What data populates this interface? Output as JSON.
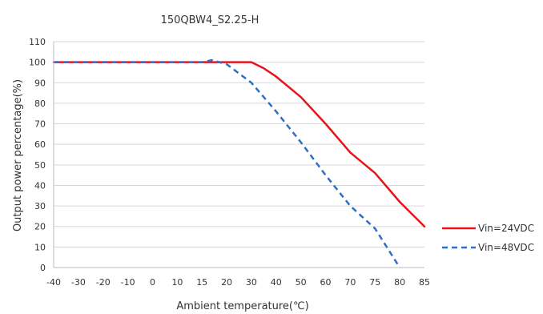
{
  "chart_data": {
    "type": "line",
    "title": "150QBW4_S2.25-H",
    "xlabel": "Ambient temperature(℃)",
    "ylabel": "Output power percentage(%)",
    "x_ticks": [
      -40,
      -30,
      -20,
      -10,
      0,
      10,
      15,
      20,
      30,
      40,
      50,
      60,
      70,
      75,
      80,
      85
    ],
    "y_ticks": [
      0,
      10,
      20,
      30,
      40,
      50,
      60,
      70,
      80,
      90,
      100,
      110
    ],
    "ylim": [
      0,
      110
    ],
    "grid": "horizontal",
    "legend_position": "right",
    "series": [
      {
        "name": "Vin=24VDC",
        "color": "#e8141c",
        "style": "solid",
        "x": [
          -40,
          -30,
          -20,
          -10,
          0,
          10,
          15,
          20,
          25,
          30,
          35,
          40,
          50,
          60,
          70,
          75,
          80,
          85
        ],
        "y": [
          100,
          100,
          100,
          100,
          100,
          100,
          100,
          100,
          100,
          100,
          97,
          93,
          83,
          70,
          56,
          46,
          32,
          20
        ]
      },
      {
        "name": "Vin=48VDC",
        "color": "#2e6fc4",
        "style": "dashed",
        "x": [
          -40,
          -30,
          -20,
          -10,
          0,
          10,
          15,
          17,
          20,
          30,
          40,
          50,
          60,
          70,
          75,
          80
        ],
        "y": [
          100,
          100,
          100,
          100,
          100,
          100,
          100,
          101,
          99,
          90,
          76,
          61,
          45,
          30,
          19,
          0
        ]
      }
    ]
  }
}
